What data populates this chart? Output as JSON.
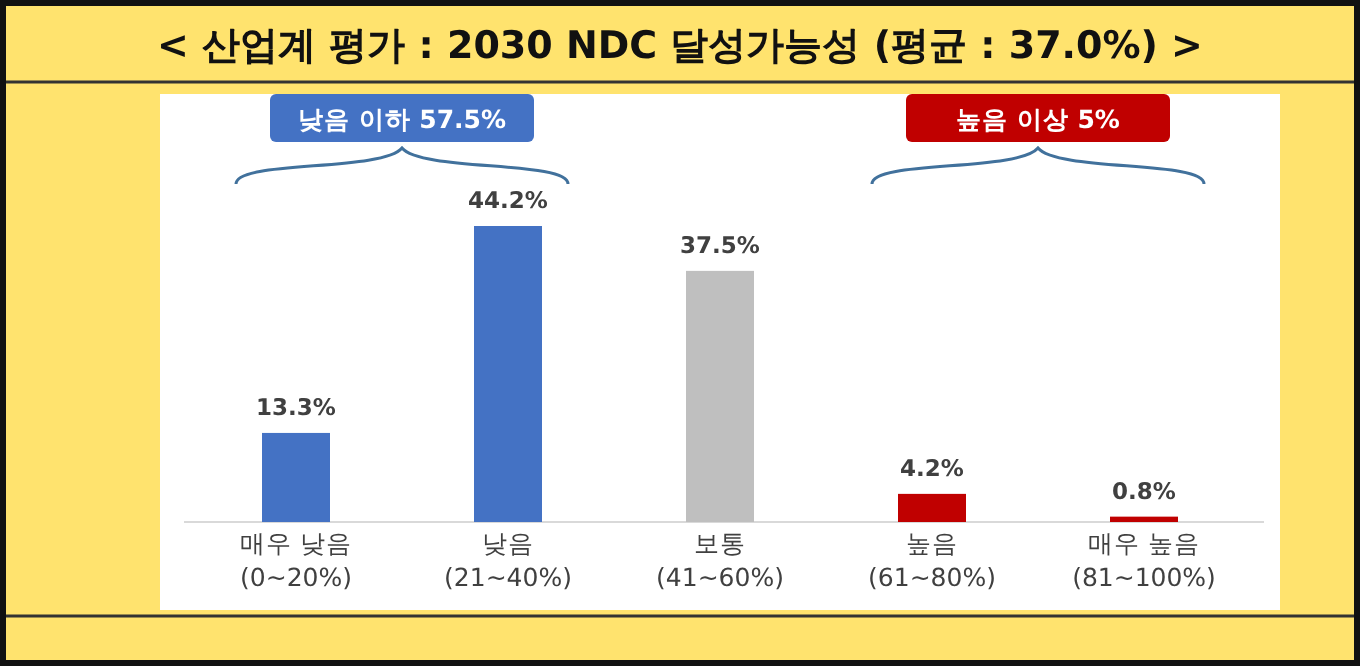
{
  "chart_data": {
    "type": "bar",
    "title": "< 산업계 평가 : 2030 NDC 달성가능성 (평균 : 37.0%) >",
    "categories": [
      "매우 낮음\n(0~20%)",
      "낮음\n(21~40%)",
      "보통\n(41~60%)",
      "높음\n(61~80%)",
      "매우 높음\n(81~100%)"
    ],
    "values": [
      13.3,
      44.2,
      37.5,
      4.2,
      0.8
    ],
    "colors": [
      "#4472c4",
      "#4472c4",
      "#bfbfbf",
      "#c00000",
      "#c00000"
    ],
    "value_labels": [
      "13.3%",
      "44.2%",
      "37.5%",
      "4.2%",
      "0.8%"
    ],
    "annotations": [
      "낮음 이하 57.5%",
      "높음 이상 5%"
    ]
  }
}
